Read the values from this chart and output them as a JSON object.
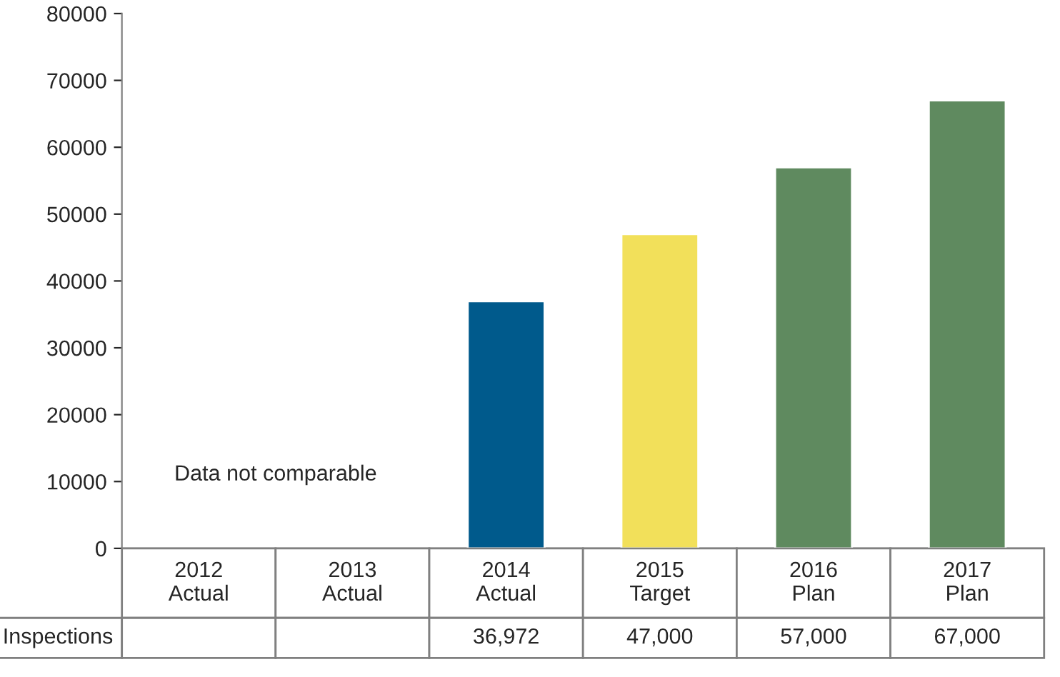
{
  "chart_data": {
    "type": "bar",
    "categories": [
      "2012\nActual",
      "2013\nActual",
      "2014\nActual",
      "2015\nTarget",
      "2016\nPlan",
      "2017\nPlan"
    ],
    "series": [
      {
        "name": "Inspections",
        "values": [
          null,
          null,
          36972,
          47000,
          57000,
          67000
        ],
        "colors": [
          null,
          null,
          "#005a8c",
          "#f2e05a",
          "#5f8a5f",
          "#5f8a5f"
        ],
        "value_labels": [
          null,
          null,
          "36,972",
          "47,000",
          "57,000",
          "67,000"
        ]
      }
    ],
    "ylim": [
      0,
      80000
    ],
    "yticks": [
      0,
      10000,
      20000,
      30000,
      40000,
      50000,
      60000,
      70000,
      80000
    ],
    "annotations": [
      "Data not comparable"
    ],
    "grid": false,
    "legend": false
  }
}
